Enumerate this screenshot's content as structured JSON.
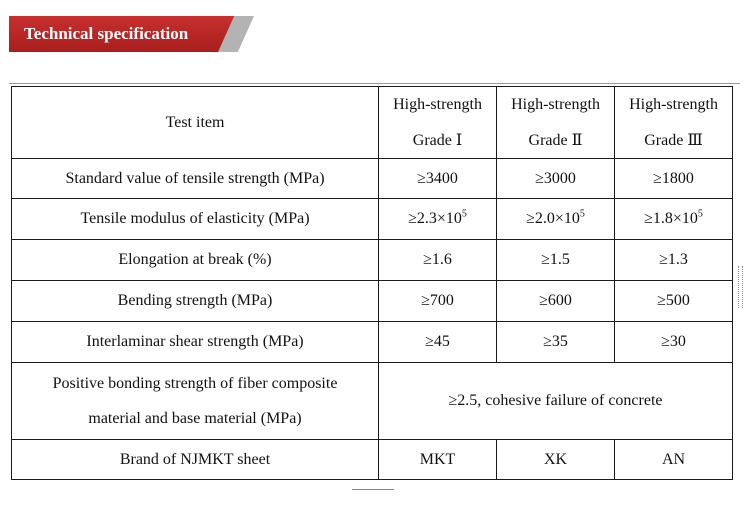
{
  "header": {
    "title": "Technical specification"
  },
  "table": {
    "header": {
      "item_label": "Test item",
      "grades": [
        {
          "line1": "High-strength",
          "line2": "Grade Ⅰ"
        },
        {
          "line1": "High-strength",
          "line2": "Grade Ⅱ"
        },
        {
          "line1": "High-strength",
          "line2": "Grade Ⅲ"
        }
      ]
    },
    "rows": [
      {
        "item": "Standard value of tensile strength (MPa)",
        "values": [
          "≥3400",
          "≥3000",
          "≥1800"
        ]
      },
      {
        "item": "Tensile modulus of elasticity (MPa)",
        "values": [
          {
            "base": "≥2.3×10",
            "exp": "5"
          },
          {
            "base": "≥2.0×10",
            "exp": "5"
          },
          {
            "base": "≥1.8×10",
            "exp": "5"
          }
        ]
      },
      {
        "item": "Elongation at break (%)",
        "values": [
          "≥1.6",
          "≥1.5",
          "≥1.3"
        ]
      },
      {
        "item": "Bending strength (MPa)",
        "values": [
          "≥700",
          "≥600",
          "≥500"
        ]
      },
      {
        "item": "Interlaminar shear strength (MPa)",
        "values": [
          "≥45",
          "≥35",
          "≥30"
        ]
      }
    ],
    "bonding_row": {
      "item_line1": "Positive bonding strength of fiber composite",
      "item_line2": "material and base material (MPa)",
      "value": "≥2.5, cohesive failure of concrete"
    },
    "brand_row": {
      "item": "Brand of NJMKT sheet",
      "values": [
        "MKT",
        "XK",
        "AN"
      ]
    }
  }
}
